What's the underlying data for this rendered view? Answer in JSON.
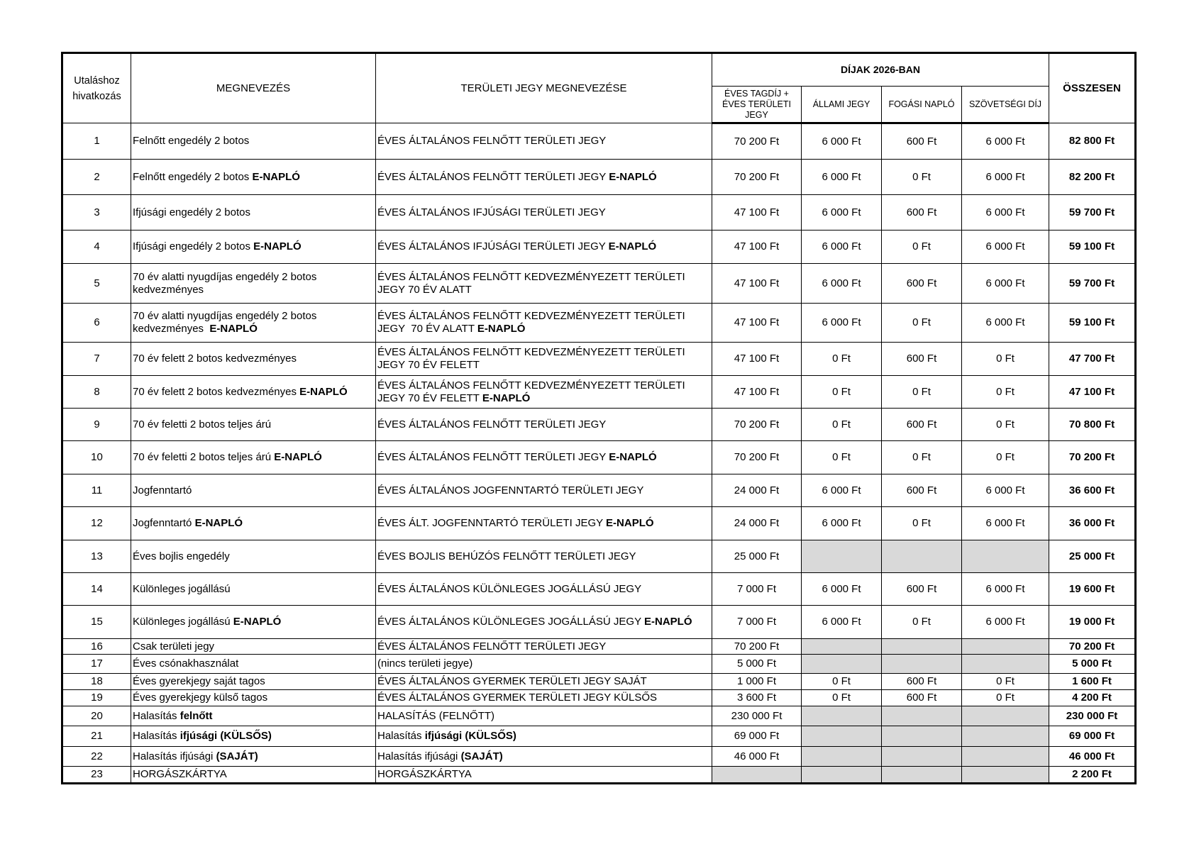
{
  "header": {
    "ref": "Utaláshoz hivatkozás",
    "name": "MEGNEVEZÉS",
    "ticket": "TERÜLETI JEGY MEGNEVEZÉSE",
    "fees_group": "DÍJAK 2026-BAN",
    "fee_cols": [
      "ÉVES TAGDÍJ + ÉVES TERÜLETI JEGY",
      "ÁLLAMI JEGY",
      "FOGÁSI NAPLÓ",
      "SZÖVETSÉGI DÍJ"
    ],
    "total": "ÖSSZESEN"
  },
  "colors": {
    "grey_cell": "#d9d9d9",
    "border": "#000000"
  },
  "rows": [
    {
      "ref": "1",
      "name": [
        {
          "t": "Felnőtt engedély 2 botos"
        }
      ],
      "ticket": [
        {
          "t": "ÉVES ÁLTALÁNOS FELNŐTT TERÜLETI JEGY"
        }
      ],
      "fees": [
        "70 200 Ft",
        "6 000 Ft",
        "600 Ft",
        "6 000 Ft"
      ],
      "total": "82 800 Ft"
    },
    {
      "ref": "2",
      "name": [
        {
          "t": "Felnőtt engedély 2 botos "
        },
        {
          "t": "E-NAPLÓ",
          "b": true
        }
      ],
      "ticket": [
        {
          "t": "ÉVES ÁLTALÁNOS FELNŐTT TERÜLETI JEGY "
        },
        {
          "t": "E-NAPLÓ",
          "b": true
        }
      ],
      "fees": [
        "70 200 Ft",
        "6 000 Ft",
        "0 Ft",
        "6 000 Ft"
      ],
      "total": "82 200 Ft"
    },
    {
      "ref": "3",
      "name": [
        {
          "t": "Ifjúsági engedély 2 botos"
        }
      ],
      "ticket": [
        {
          "t": "ÉVES ÁLTALÁNOS IFJÚSÁGI TERÜLETI JEGY"
        }
      ],
      "fees": [
        "47 100 Ft",
        "6 000 Ft",
        "600 Ft",
        "6 000 Ft"
      ],
      "total": "59 700 Ft"
    },
    {
      "ref": "4",
      "name": [
        {
          "t": "Ifjúsági engedély 2 botos "
        },
        {
          "t": "E-NAPLÓ",
          "b": true
        }
      ],
      "ticket": [
        {
          "t": "ÉVES ÁLTALÁNOS IFJÚSÁGI TERÜLETI JEGY "
        },
        {
          "t": "E-NAPLÓ",
          "b": true
        }
      ],
      "fees": [
        "47 100 Ft",
        "6 000 Ft",
        "0 Ft",
        "6 000 Ft"
      ],
      "total": "59 100 Ft"
    },
    {
      "ref": "5",
      "name": [
        {
          "t": "70 év alatti nyugdíjas engedély 2 botos kedvezményes"
        }
      ],
      "ticket": [
        {
          "t": "ÉVES ÁLTALÁNOS FELNŐTT KEDVEZMÉNYEZETT TERÜLETI JEGY 70 ÉV ALATT"
        }
      ],
      "fees": [
        "47 100 Ft",
        "6 000 Ft",
        "600 Ft",
        "6 000 Ft"
      ],
      "total": "59 700 Ft"
    },
    {
      "ref": "6",
      "name": [
        {
          "t": "70 év alatti nyugdíjas engedély 2 botos kedvezményes  "
        },
        {
          "t": "E-NAPLÓ",
          "b": true
        }
      ],
      "ticket": [
        {
          "t": "ÉVES ÁLTALÁNOS FELNŐTT KEDVEZMÉNYEZETT TERÜLETI JEGY  70 ÉV ALATT "
        },
        {
          "t": "E-NAPLÓ",
          "b": true
        }
      ],
      "fees": [
        "47 100 Ft",
        "6 000 Ft",
        "0 Ft",
        "6 000 Ft"
      ],
      "total": "59 100 Ft"
    },
    {
      "ref": "7",
      "name": [
        {
          "t": "70 év felett 2 botos kedvezményes"
        }
      ],
      "ticket": [
        {
          "t": "ÉVES ÁLTALÁNOS FELNŐTT KEDVEZMÉNYEZETT TERÜLETI JEGY 70 ÉV FELETT"
        }
      ],
      "fees": [
        "47 100 Ft",
        "0 Ft",
        "600 Ft",
        "0 Ft"
      ],
      "total": "47 700 Ft"
    },
    {
      "ref": "8",
      "name": [
        {
          "t": "70 év felett 2 botos kedvezményes "
        },
        {
          "t": "E-NAPLÓ",
          "b": true
        }
      ],
      "ticket": [
        {
          "t": "ÉVES ÁLTALÁNOS FELNŐTT KEDVEZMÉNYEZETT TERÜLETI JEGY 70 ÉV FELETT "
        },
        {
          "t": "E-NAPLÓ",
          "b": true
        }
      ],
      "fees": [
        "47 100 Ft",
        "0 Ft",
        "0 Ft",
        "0 Ft"
      ],
      "total": "47 100 Ft"
    },
    {
      "ref": "9",
      "name": [
        {
          "t": "70 év feletti 2 botos teljes árú"
        }
      ],
      "ticket": [
        {
          "t": "ÉVES ÁLTALÁNOS FELNŐTT TERÜLETI JEGY"
        }
      ],
      "fees": [
        "70 200 Ft",
        "0 Ft",
        "600 Ft",
        "0 Ft"
      ],
      "total": "70 800 Ft"
    },
    {
      "ref": "10",
      "name": [
        {
          "t": "70 év feletti 2 botos teljes árú "
        },
        {
          "t": "E-NAPLÓ",
          "b": true
        }
      ],
      "ticket": [
        {
          "t": "ÉVES ÁLTALÁNOS FELNŐTT TERÜLETI JEGY "
        },
        {
          "t": "E-NAPLÓ",
          "b": true
        }
      ],
      "fees": [
        "70 200 Ft",
        "0 Ft",
        "0 Ft",
        "0 Ft"
      ],
      "total": "70 200 Ft"
    },
    {
      "ref": "11",
      "name": [
        {
          "t": "Jogfenntartó"
        }
      ],
      "ticket": [
        {
          "t": "ÉVES ÁLTALÁNOS JOGFENNTARTÓ TERÜLETI JEGY"
        }
      ],
      "fees": [
        "24 000 Ft",
        "6 000 Ft",
        "600 Ft",
        "6 000 Ft"
      ],
      "total": "36 600 Ft"
    },
    {
      "ref": "12",
      "name": [
        {
          "t": "Jogfenntartó "
        },
        {
          "t": "E-NAPLÓ",
          "b": true
        }
      ],
      "ticket": [
        {
          "t": "ÉVES ÁLT. JOGFENNTARTÓ TERÜLETI JEGY "
        },
        {
          "t": "E-NAPLÓ",
          "b": true
        }
      ],
      "fees": [
        "24 000 Ft",
        "6 000 Ft",
        "0 Ft",
        "6 000 Ft"
      ],
      "total": "36 000 Ft"
    },
    {
      "ref": "13",
      "name": [
        {
          "t": "Éves bojlis engedély"
        }
      ],
      "ticket": [
        {
          "t": "ÉVES BOJLIS BEHÚZÓS FELNŐTT TERÜLETI JEGY"
        }
      ],
      "fees": [
        "25 000 Ft",
        null,
        null,
        null
      ],
      "total": "25 000 Ft"
    },
    {
      "ref": "14",
      "name": [
        {
          "t": "Különleges jogállású"
        }
      ],
      "ticket": [
        {
          "t": "ÉVES ÁLTALÁNOS KÜLÖNLEGES JOGÁLLÁSÚ JEGY"
        }
      ],
      "fees": [
        "7 000 Ft",
        "6 000 Ft",
        "600 Ft",
        "6 000 Ft"
      ],
      "total": "19 600 Ft"
    },
    {
      "ref": "15",
      "name": [
        {
          "t": "Különleges jogállású "
        },
        {
          "t": "E-NAPLÓ",
          "b": true
        }
      ],
      "ticket": [
        {
          "t": "ÉVES ÁLTALÁNOS KÜLÖNLEGES JOGÁLLÁSÚ JEGY "
        },
        {
          "t": "E-NAPLÓ",
          "b": true
        }
      ],
      "fees": [
        "7 000 Ft",
        "6 000 Ft",
        "0 Ft",
        "6 000 Ft"
      ],
      "total": "19 000 Ft"
    },
    {
      "ref": "16",
      "name": [
        {
          "t": "Csak területi jegy"
        }
      ],
      "ticket": [
        {
          "t": "ÉVES ÁLTALÁNOS FELNŐTT TERÜLETI JEGY"
        }
      ],
      "fees": [
        "70 200 Ft",
        null,
        null,
        null
      ],
      "total": "70 200 Ft"
    },
    {
      "ref": "17",
      "name": [
        {
          "t": "Éves csónakhasználat"
        }
      ],
      "ticket": [
        {
          "t": "(nincs területi jegye)"
        }
      ],
      "fees": [
        "5 000 Ft",
        null,
        null,
        null
      ],
      "total": "5 000 Ft"
    },
    {
      "ref": "18",
      "name": [
        {
          "t": "Éves gyerekjegy saját tagos"
        }
      ],
      "ticket": [
        {
          "t": "ÉVES ÁLTALÁNOS GYERMEK TERÜLETI JEGY SAJÁT"
        }
      ],
      "fees": [
        "1 000 Ft",
        "0 Ft",
        "600 Ft",
        "0 Ft"
      ],
      "total": "1 600 Ft"
    },
    {
      "ref": "19",
      "name": [
        {
          "t": "Éves gyerekjegy külső tagos"
        }
      ],
      "ticket": [
        {
          "t": "ÉVES ÁLTALÁNOS GYERMEK TERÜLETI JEGY KÜLSŐS"
        }
      ],
      "fees": [
        "3 600 Ft",
        "0 Ft",
        "600 Ft",
        "0 Ft"
      ],
      "total": "4 200 Ft"
    },
    {
      "ref": "20",
      "name": [
        {
          "t": "Halasítás "
        },
        {
          "t": "felnőtt",
          "b": true
        }
      ],
      "ticket": [
        {
          "t": "HALASÍTÁS (FELNŐTT)"
        }
      ],
      "fees": [
        "230 000 Ft",
        null,
        null,
        null
      ],
      "total": "230 000 Ft"
    },
    {
      "ref": "21",
      "name": [
        {
          "t": "Halasítás "
        },
        {
          "t": "ifjúsági (KÜLSŐS)",
          "b": true
        }
      ],
      "ticket": [
        {
          "t": "Halasítás "
        },
        {
          "t": "ifjúsági (KÜLSŐS)",
          "b": true
        }
      ],
      "fees": [
        "69 000 Ft",
        null,
        null,
        null
      ],
      "total": "69 000 Ft"
    },
    {
      "ref": "22",
      "name": [
        {
          "t": "Halasítás ifjúsági "
        },
        {
          "t": "(SAJÁT)",
          "b": true
        }
      ],
      "ticket": [
        {
          "t": "Halasítás ifjúsági "
        },
        {
          "t": "(SAJÁT)",
          "b": true
        }
      ],
      "fees": [
        "46 000 Ft",
        null,
        null,
        null
      ],
      "total": "46 000 Ft"
    },
    {
      "ref": "23",
      "name": [
        {
          "t": "HORGÁSZKÁRTYA"
        }
      ],
      "ticket": [
        {
          "t": "HORGÁSZKÁRTYA"
        }
      ],
      "fees": [
        null,
        null,
        null,
        null
      ],
      "total": "2 200 Ft"
    }
  ]
}
